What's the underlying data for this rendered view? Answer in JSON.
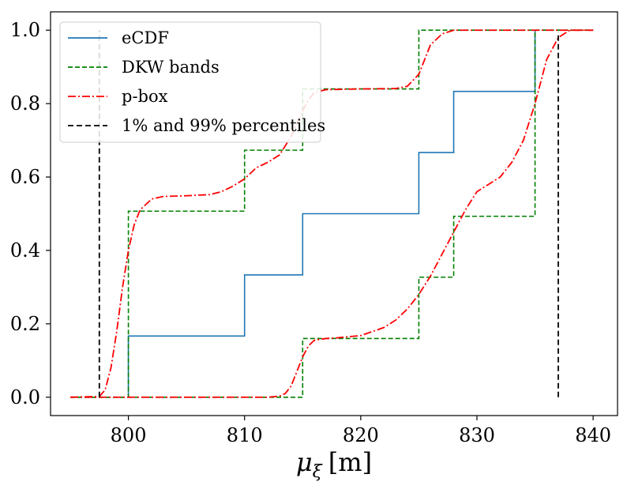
{
  "chart_data": {
    "type": "line",
    "title": "",
    "xlabel": {
      "symbol": "μ",
      "subscript": "ξ",
      "unit": "[m]"
    },
    "ylabel": "",
    "xlim": [
      793.3,
      842.1
    ],
    "ylim": [
      -0.05,
      1.05
    ],
    "xticks": [
      800,
      810,
      820,
      830,
      840
    ],
    "xtick_labels": [
      "800",
      "810",
      "820",
      "830",
      "840"
    ],
    "yticks": [
      0.0,
      0.2,
      0.4,
      0.6,
      0.8,
      1.0
    ],
    "ytick_labels": [
      "0.0",
      "0.2",
      "0.4",
      "0.6",
      "0.8",
      "1.0"
    ],
    "grid": false,
    "legend_position": "top-left",
    "series": [
      {
        "name": "eCDF",
        "color": "#1f77b4",
        "style": "solid-step",
        "steps": [
          [
            800,
            0.0
          ],
          [
            800,
            0.1667
          ],
          [
            810,
            0.1667
          ],
          [
            810,
            0.3333
          ],
          [
            815,
            0.3333
          ],
          [
            815,
            0.5
          ],
          [
            825,
            0.5
          ],
          [
            825,
            0.6667
          ],
          [
            828,
            0.6667
          ],
          [
            828,
            0.8333
          ],
          [
            835,
            0.8333
          ],
          [
            835,
            1.0
          ]
        ]
      },
      {
        "name": "DKW bands",
        "color": "#008000",
        "style": "dashed-step",
        "upper": [
          [
            795,
            0.0
          ],
          [
            800,
            0.0
          ],
          [
            800,
            0.507
          ],
          [
            810,
            0.507
          ],
          [
            810,
            0.673
          ],
          [
            815,
            0.673
          ],
          [
            815,
            0.84
          ],
          [
            825,
            0.84
          ],
          [
            825,
            1.0
          ],
          [
            840,
            1.0
          ]
        ],
        "lower": [
          [
            795,
            0.0
          ],
          [
            815,
            0.0
          ],
          [
            815,
            0.16
          ],
          [
            825,
            0.16
          ],
          [
            825,
            0.327
          ],
          [
            828,
            0.327
          ],
          [
            828,
            0.493
          ],
          [
            835,
            0.493
          ],
          [
            835,
            1.0
          ],
          [
            840,
            1.0
          ]
        ]
      },
      {
        "name": "p-box",
        "color": "#ff0000",
        "style": "dash-dot",
        "upper": [
          [
            795,
            0.0
          ],
          [
            797.5,
            0.002
          ],
          [
            798,
            0.02
          ],
          [
            798.5,
            0.08
          ],
          [
            799,
            0.18
          ],
          [
            799.5,
            0.3
          ],
          [
            800,
            0.4
          ],
          [
            800.5,
            0.47
          ],
          [
            801,
            0.51
          ],
          [
            802,
            0.54
          ],
          [
            803,
            0.547
          ],
          [
            805,
            0.549
          ],
          [
            807,
            0.552
          ],
          [
            808,
            0.56
          ],
          [
            809,
            0.575
          ],
          [
            810,
            0.595
          ],
          [
            811,
            0.625
          ],
          [
            812,
            0.64
          ],
          [
            813,
            0.66
          ],
          [
            814,
            0.71
          ],
          [
            815,
            0.78
          ],
          [
            815.5,
            0.81
          ],
          [
            816,
            0.83
          ],
          [
            817,
            0.838
          ],
          [
            820,
            0.84
          ],
          [
            823,
            0.841
          ],
          [
            824,
            0.847
          ],
          [
            825,
            0.88
          ],
          [
            825.5,
            0.92
          ],
          [
            826,
            0.96
          ],
          [
            827,
            0.99
          ],
          [
            828,
            1.0
          ],
          [
            840,
            1.0
          ]
        ],
        "lower": [
          [
            795,
            0.0
          ],
          [
            812,
            0.0
          ],
          [
            813,
            0.003
          ],
          [
            813.5,
            0.01
          ],
          [
            814,
            0.03
          ],
          [
            814.5,
            0.07
          ],
          [
            815,
            0.11
          ],
          [
            815.5,
            0.14
          ],
          [
            816,
            0.155
          ],
          [
            817,
            0.16
          ],
          [
            818,
            0.162
          ],
          [
            820,
            0.168
          ],
          [
            822,
            0.19
          ],
          [
            823,
            0.21
          ],
          [
            824,
            0.24
          ],
          [
            825,
            0.28
          ],
          [
            826,
            0.33
          ],
          [
            827,
            0.39
          ],
          [
            828,
            0.45
          ],
          [
            829,
            0.51
          ],
          [
            830,
            0.56
          ],
          [
            831,
            0.58
          ],
          [
            832,
            0.6
          ],
          [
            833,
            0.64
          ],
          [
            834,
            0.7
          ],
          [
            834.5,
            0.75
          ],
          [
            835,
            0.8
          ],
          [
            835.5,
            0.86
          ],
          [
            836,
            0.92
          ],
          [
            837,
            0.98
          ],
          [
            838,
            1.0
          ],
          [
            840,
            1.0
          ]
        ]
      },
      {
        "name": "1% and 99% percentiles",
        "color": "#000000",
        "style": "dashed-vertical",
        "lines": [
          {
            "x": 797.5,
            "y0": 0.0,
            "y1": 1.0
          },
          {
            "x": 837,
            "y0": 0.0,
            "y1": 0.995
          }
        ]
      }
    ]
  }
}
